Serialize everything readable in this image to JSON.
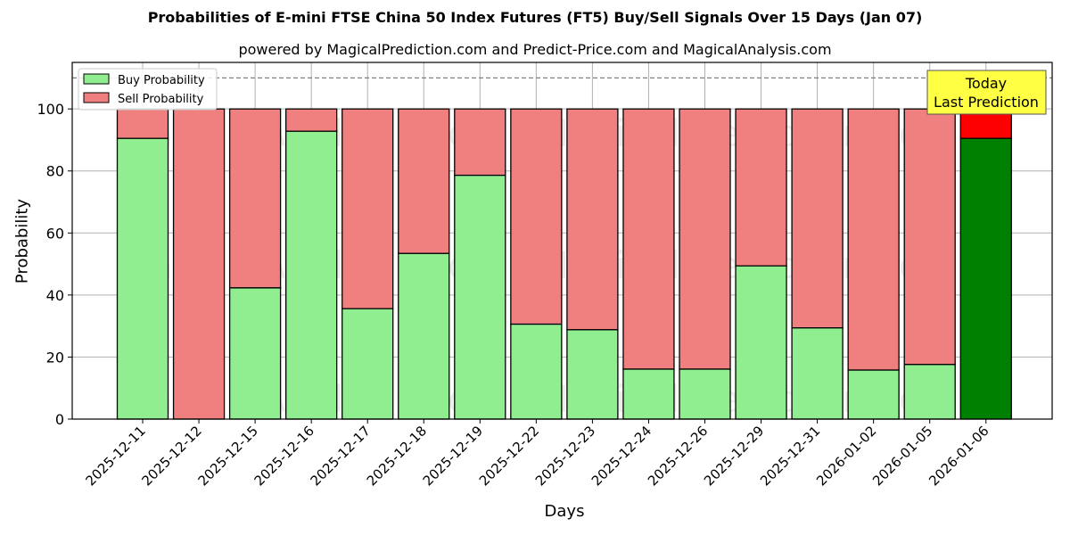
{
  "title": "Probabilities of E-mini FTSE China 50 Index Futures (FT5) Buy/Sell Signals Over 15 Days (Jan 07)",
  "subtitle": "powered by MagicalPrediction.com and Predict-Price.com and MagicalAnalysis.com",
  "watermarks": [
    "MagicalAnalysis.com",
    "MagicalPrediction.com"
  ],
  "annotation": {
    "line1": "Today",
    "line2": "Last Prediction"
  },
  "colors": {
    "buy": "#90ee90",
    "sell": "#f08080",
    "today_buy": "#008000",
    "today_sell": "#ff0000",
    "annotation_bg": "#ffff44"
  },
  "chart_data": {
    "type": "bar",
    "stacked": true,
    "title": "Probabilities of E-mini FTSE China 50 Index Futures (FT5) Buy/Sell Signals Over 15 Days (Jan 07)",
    "subtitle": "powered by MagicalPrediction.com and Predict-Price.com and MagicalAnalysis.com",
    "xlabel": "Days",
    "ylabel": "Probability",
    "ylim": [
      0,
      115
    ],
    "yticks": [
      0,
      20,
      40,
      60,
      80,
      100
    ],
    "grid": true,
    "legend_position": "upper left",
    "reference_line": {
      "y": 110,
      "style": "dashed"
    },
    "categories": [
      "2025-12-11",
      "2025-12-12",
      "2025-12-15",
      "2025-12-16",
      "2025-12-17",
      "2025-12-18",
      "2025-12-19",
      "2025-12-22",
      "2025-12-23",
      "2025-12-24",
      "2025-12-26",
      "2025-12-29",
      "2025-12-31",
      "2026-01-02",
      "2026-01-05",
      "2026-01-06"
    ],
    "series": [
      {
        "name": "Buy Probability",
        "values": [
          90.5,
          0,
          42.3,
          92.8,
          35.6,
          53.4,
          78.6,
          30.6,
          28.8,
          16.1,
          16.1,
          49.4,
          29.4,
          15.8,
          17.6,
          90.5
        ]
      },
      {
        "name": "Sell Probability",
        "values": [
          9.5,
          100,
          57.7,
          7.2,
          64.4,
          46.6,
          21.4,
          69.4,
          71.2,
          83.9,
          83.9,
          50.6,
          70.6,
          84.2,
          82.4,
          9.5
        ]
      }
    ],
    "highlight_index": 15,
    "annotations": [
      "Today",
      "Last Prediction"
    ]
  }
}
